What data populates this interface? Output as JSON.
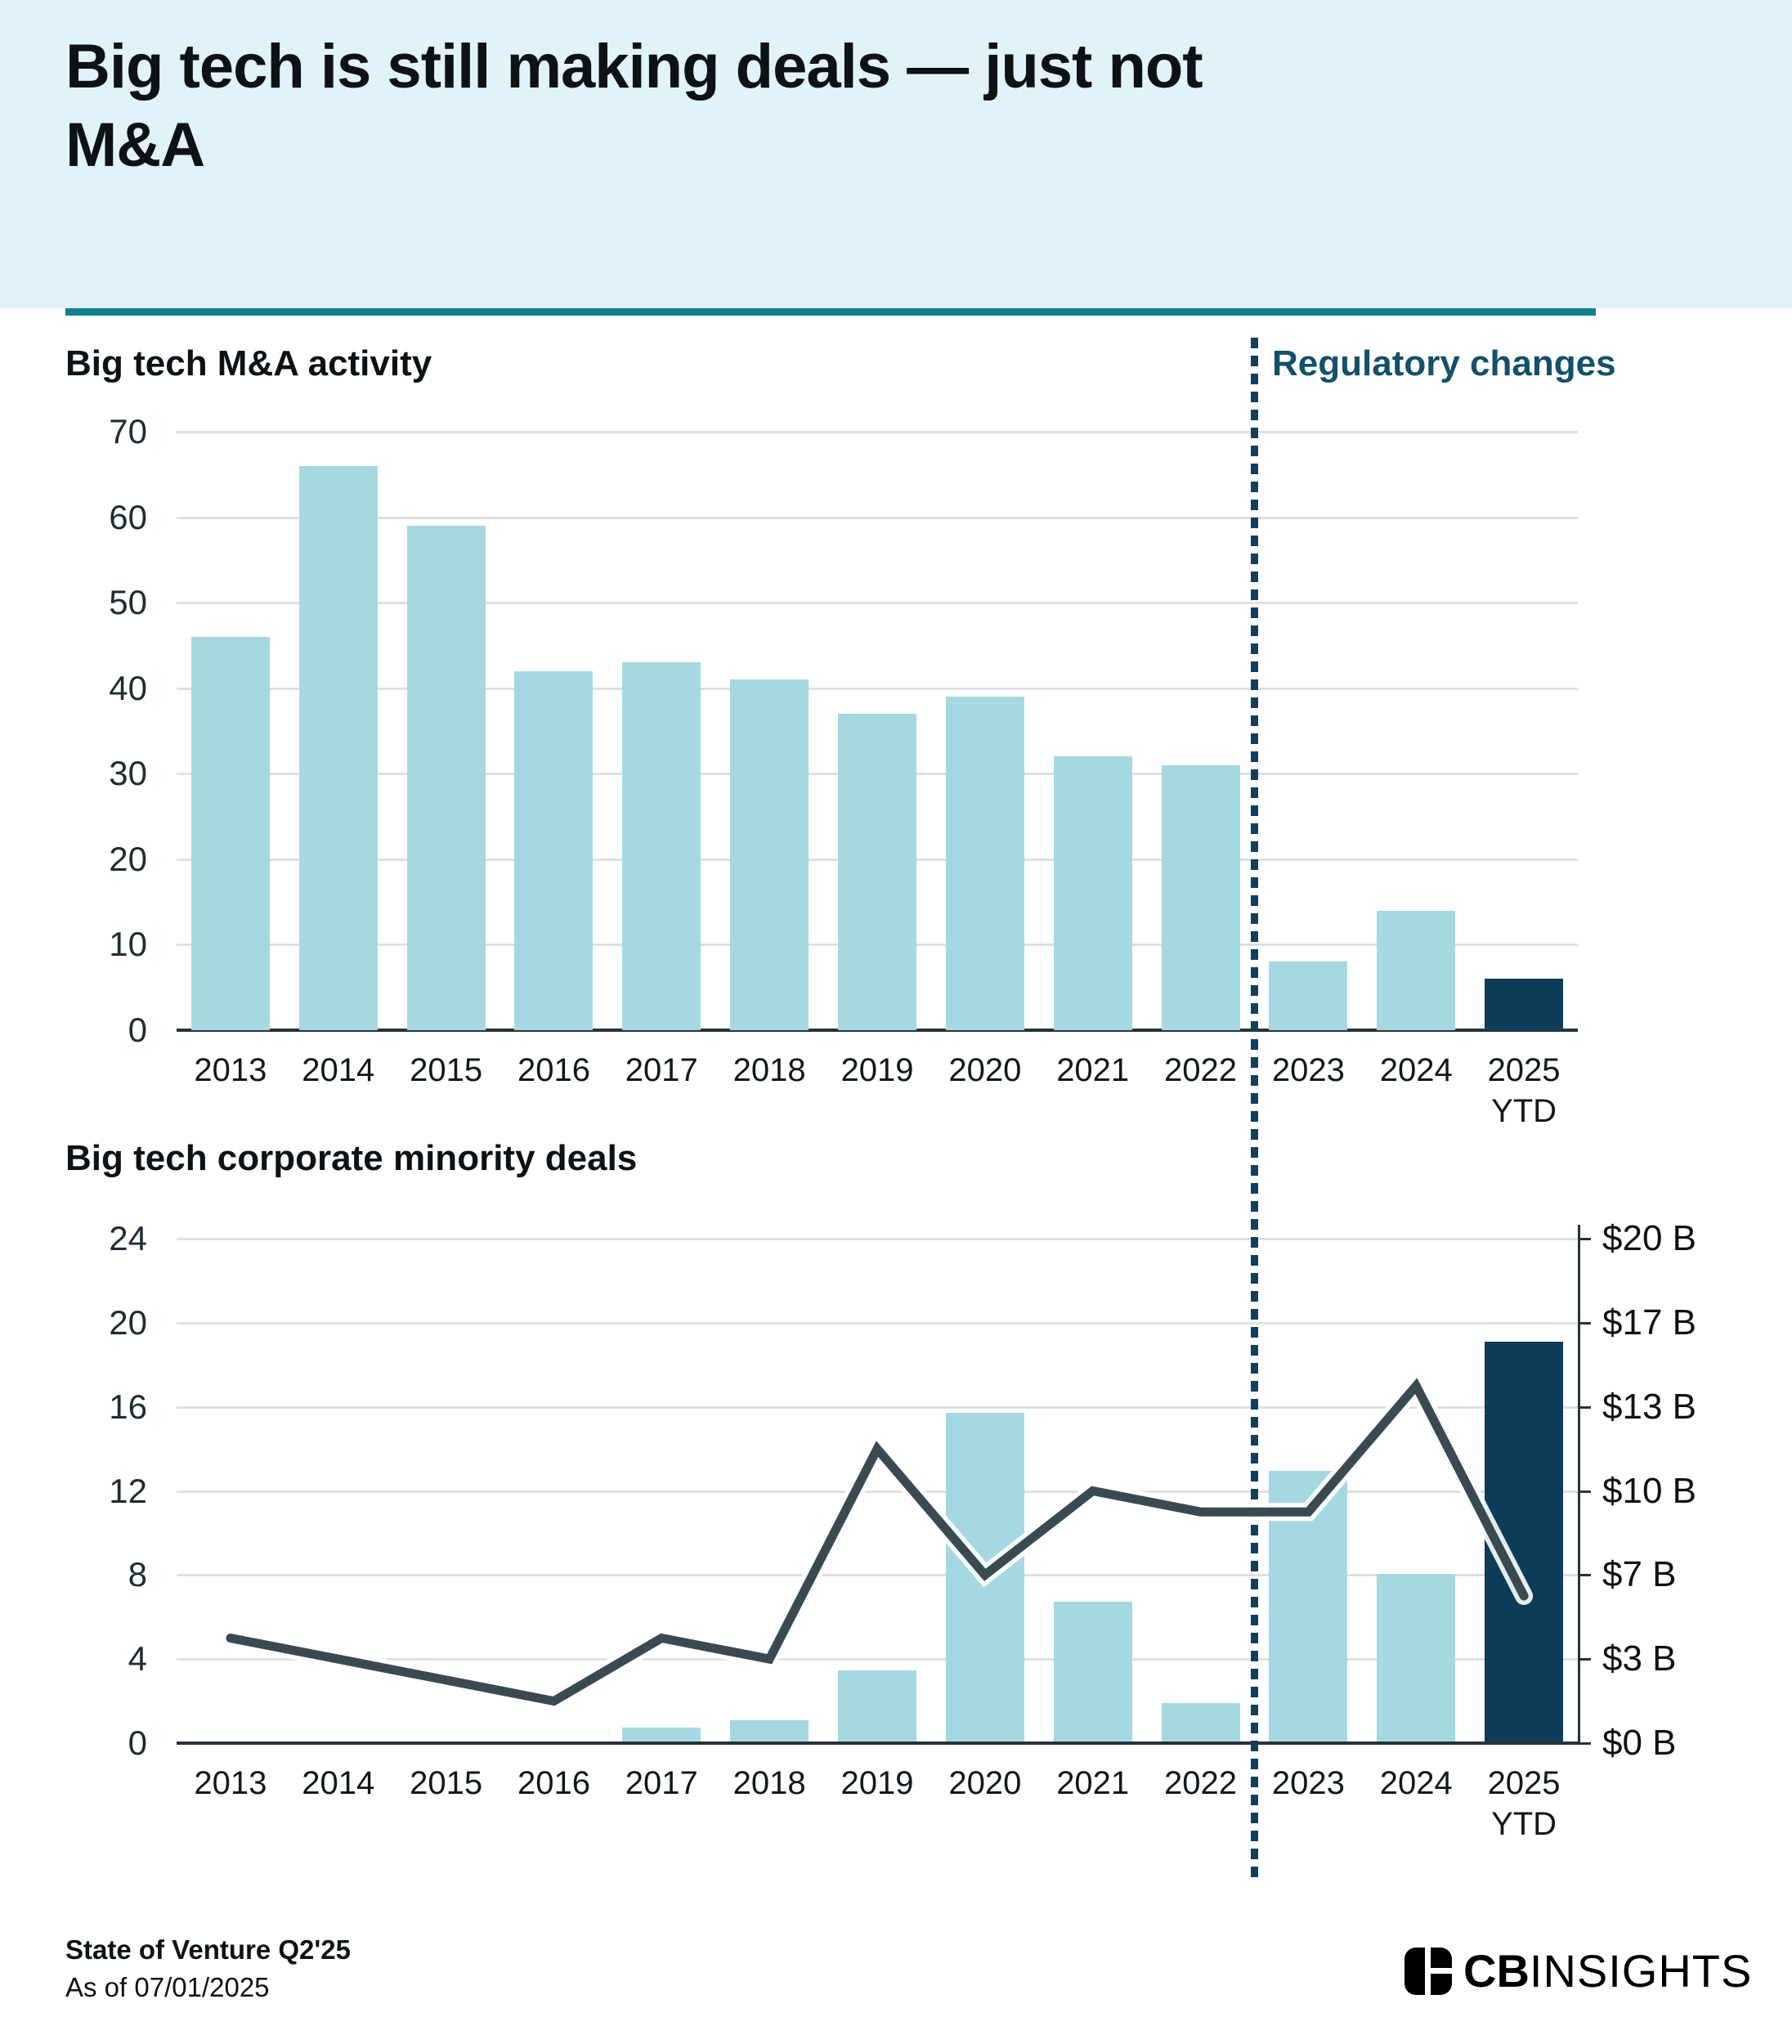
{
  "header": {
    "title": "Big tech is still making deals — just not\nM&A"
  },
  "annotation": {
    "label": "Regulatory changes"
  },
  "footer": {
    "report": "State of Venture Q2'25",
    "as_of": "As of 07/01/2025",
    "brand_bold": "CB",
    "brand_light": "INSIGHTS"
  },
  "colors": {
    "banner_bg": "#e1f3f8",
    "rule_teal": "#15808d",
    "bar_light": "#a6d8e1",
    "bar_navy": "#0d3d58",
    "line": "#3a4a51",
    "line_glow": "#ffffff",
    "annotation_text": "#14506b",
    "grid": "#e0e0e0",
    "axis": "#26333a"
  },
  "chart_data": [
    {
      "type": "bar",
      "title": "Big tech M&A activity",
      "categories": [
        "2013",
        "2014",
        "2015",
        "2016",
        "2017",
        "2018",
        "2019",
        "2020",
        "2021",
        "2022",
        "2023",
        "2024",
        "2025 YTD"
      ],
      "values": [
        46,
        66,
        59,
        42,
        43,
        41,
        37,
        39,
        32,
        31,
        8,
        14,
        6
      ],
      "ylim": [
        0,
        70
      ],
      "yticks": [
        0,
        10,
        20,
        30,
        40,
        50,
        60,
        70
      ],
      "grid": true,
      "highlight_index": 12,
      "annotation_between": [
        "2022",
        "2023"
      ]
    },
    {
      "type": "combo",
      "title": "Big tech corporate minority deals",
      "categories": [
        "2013",
        "2014",
        "2015",
        "2016",
        "2017",
        "2018",
        "2019",
        "2020",
        "2021",
        "2022",
        "2023",
        "2024",
        "2025 YTD"
      ],
      "series": [
        {
          "name": "bars_deal_value_usd_b",
          "type": "bar",
          "axis": "right",
          "values": [
            0,
            0,
            0,
            0,
            0.6,
            0.9,
            2.9,
            13.1,
            5.6,
            1.6,
            10.8,
            6.7,
            15.9
          ]
        },
        {
          "name": "line_deal_count",
          "type": "line",
          "axis": "left",
          "values": [
            5,
            4,
            3,
            2,
            5,
            4,
            14,
            8,
            12,
            11,
            11,
            17,
            7
          ]
        }
      ],
      "left_ylim": [
        0,
        24
      ],
      "left_yticks": [
        0,
        4,
        8,
        12,
        16,
        20,
        24
      ],
      "right_ylim": [
        0,
        20
      ],
      "right_tick_labels": [
        "$0 B",
        "$3 B",
        "$7 B",
        "$10 B",
        "$13 B",
        "$17 B",
        "$20 B"
      ],
      "grid": true,
      "highlight_index": 12,
      "annotation_between": [
        "2022",
        "2023"
      ]
    }
  ]
}
